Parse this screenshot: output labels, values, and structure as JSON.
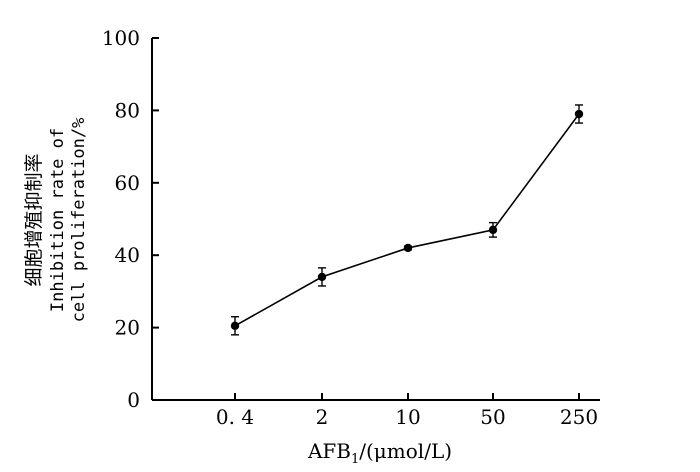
{
  "chart_data": {
    "type": "line",
    "categories": [
      "0. 4",
      "2",
      "10",
      "50",
      "250"
    ],
    "series": [
      {
        "values": [
          20.5,
          34,
          42,
          47,
          79
        ],
        "error": [
          2.5,
          2.5,
          0.5,
          2,
          2.5
        ]
      }
    ],
    "ylim": [
      0,
      100
    ],
    "y_ticks": [
      "0",
      "20",
      "40",
      "60",
      "80",
      "100"
    ],
    "ylabel_lines": [
      "细胞增殖抑制率",
      "Inhibition rate of",
      "cell proliferation/%"
    ],
    "xlabel": {
      "main": "AFB",
      "sub": "1",
      "rest": "/(μmol/L)"
    },
    "grid": false,
    "line_color": "#000000",
    "marker_color": "#000000"
  }
}
